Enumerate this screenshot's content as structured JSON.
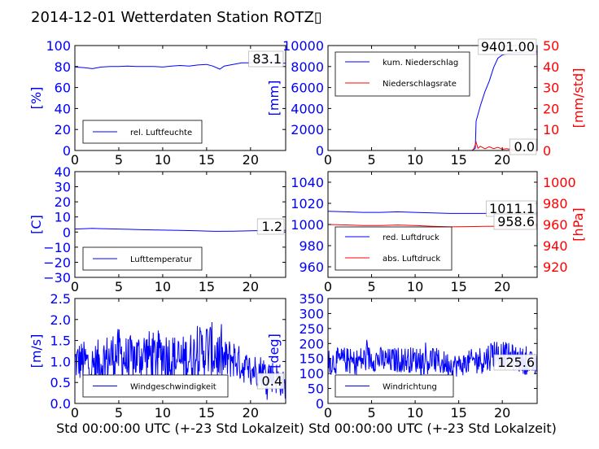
{
  "title": "2014-12-01 Wetterdaten Station ROTZ▯",
  "colors": {
    "blue": "#0000ff",
    "red": "#ff0000",
    "axis": "#000000"
  },
  "chart_data": [
    {
      "type": "line",
      "ylabel": "[%]",
      "xlabel": "",
      "xlim": [
        0,
        24
      ],
      "ylim": [
        0,
        100
      ],
      "xticks": [
        "0",
        "5",
        "10",
        "15",
        "20"
      ],
      "yticks": [
        "0",
        "20",
        "40",
        "60",
        "80",
        "100"
      ],
      "legend": [
        "rel. Luftfeuchte"
      ],
      "legend_loc": "lower-left",
      "annotations": [
        "83.1"
      ],
      "series": [
        {
          "name": "rel. Luftfeuchte",
          "color": "#0000ff",
          "x": [
            0,
            1,
            2,
            3,
            4,
            5,
            6,
            7,
            8,
            9,
            10,
            11,
            12,
            13,
            14,
            15,
            15.7,
            16.5,
            17,
            18,
            19,
            20,
            21,
            22,
            23,
            24
          ],
          "y": [
            79.5,
            79.0,
            78.0,
            79.5,
            80.0,
            80.0,
            80.5,
            80.0,
            80.0,
            80.0,
            79.5,
            80.5,
            81.0,
            80.5,
            81.5,
            82.0,
            80.5,
            77.5,
            80.5,
            82.0,
            83.5,
            83.5,
            84.5,
            84.0,
            83.5,
            83.1
          ]
        }
      ]
    },
    {
      "type": "line",
      "ylabel": "[mm]",
      "ylabel_right": "[mm/std]",
      "xlabel": "",
      "xlim": [
        0,
        24
      ],
      "ylim": [
        0,
        10000
      ],
      "ylim_right": [
        0,
        50
      ],
      "xticks": [
        "0",
        "5",
        "10",
        "15",
        "20"
      ],
      "yticks": [
        "0",
        "2000",
        "4000",
        "6000",
        "8000",
        "10000"
      ],
      "yticks_right": [
        "0",
        "10",
        "20",
        "30",
        "40",
        "50"
      ],
      "legend": [
        "kum. Niederschlag",
        "Niederschlagsrate"
      ],
      "legend_loc": "upper-left",
      "annotations": [
        "9401.00",
        "0.0"
      ],
      "series": [
        {
          "name": "kum. Niederschlag",
          "color": "#0000ff",
          "axis": "left",
          "x": [
            0,
            16.5,
            16.9,
            17.0,
            17.5,
            18.0,
            18.5,
            19.0,
            19.5,
            20.0,
            21.0,
            22.0,
            23.0,
            24.0
          ],
          "y": [
            0,
            0,
            200,
            2800,
            4300,
            5600,
            6600,
            7900,
            8800,
            9100,
            9300,
            9350,
            9390,
            9401
          ]
        },
        {
          "name": "Niederschlagsrate",
          "color": "#ff0000",
          "axis": "right",
          "x": [
            0,
            16.6,
            16.8,
            17.0,
            17.2,
            17.5,
            18.0,
            18.5,
            19.0,
            19.5,
            20.0,
            20.5,
            21.0,
            21.5,
            22.0,
            24.0
          ],
          "y": [
            0,
            0,
            1.5,
            4,
            1.0,
            2.0,
            0.8,
            1.8,
            0.9,
            1.5,
            0.6,
            0.9,
            0.5,
            0.8,
            0.0,
            0.0
          ]
        }
      ]
    },
    {
      "type": "line",
      "ylabel": "[C]",
      "xlabel": "",
      "xlim": [
        0,
        24
      ],
      "ylim": [
        -30,
        40
      ],
      "xticks": [
        "0",
        "5",
        "10",
        "15",
        "20"
      ],
      "yticks": [
        "−30",
        "−20",
        "−10",
        "0",
        "10",
        "20",
        "30",
        "40"
      ],
      "legend": [
        "Lufttemperatur"
      ],
      "legend_loc": "lower-left",
      "annotations": [
        "1.2"
      ],
      "series": [
        {
          "name": "Lufttemperatur",
          "color": "#0000ff",
          "x": [
            0,
            2,
            4,
            6,
            8,
            10,
            12,
            14,
            16,
            18,
            20,
            22,
            24
          ],
          "y": [
            2.0,
            2.4,
            2.1,
            1.8,
            1.5,
            1.3,
            1.1,
            0.8,
            0.5,
            0.6,
            0.8,
            1.0,
            1.2
          ]
        }
      ]
    },
    {
      "type": "line",
      "ylabel": "",
      "ylabel_right": "[hPa]",
      "xlabel": "",
      "xlim": [
        0,
        24
      ],
      "ylim": [
        950,
        1050
      ],
      "ylim_right": [
        910,
        1010
      ],
      "xticks": [
        "0",
        "5",
        "10",
        "15",
        "20"
      ],
      "yticks": [
        "960",
        "980",
        "1000",
        "1020",
        "1040"
      ],
      "yticks_right": [
        "920",
        "940",
        "960",
        "980",
        "1000"
      ],
      "legend": [
        "red. Luftdruck",
        "abs. Luftdruck"
      ],
      "legend_loc": "lower-left",
      "annotations": [
        "1011.1",
        "958.6"
      ],
      "series": [
        {
          "name": "red. Luftdruck",
          "color": "#0000ff",
          "axis": "left",
          "x": [
            0,
            2,
            4,
            6,
            8,
            10,
            12,
            14,
            16,
            18,
            20,
            22,
            24
          ],
          "y": [
            1012.5,
            1012.0,
            1011.5,
            1011.5,
            1012.0,
            1011.5,
            1011.0,
            1010.5,
            1010.5,
            1010.5,
            1011.0,
            1011.0,
            1011.1
          ]
        },
        {
          "name": "abs. Luftdruck",
          "color": "#ff0000",
          "axis": "right",
          "x": [
            0,
            2,
            4,
            6,
            8,
            10,
            12,
            14,
            16,
            18,
            20,
            22,
            24
          ],
          "y": [
            960.0,
            959.6,
            959.0,
            959.0,
            959.5,
            959.0,
            958.3,
            957.8,
            958.0,
            958.2,
            958.4,
            958.5,
            958.6
          ]
        }
      ]
    },
    {
      "type": "line",
      "ylabel": "[m/s]",
      "xlabel": "Std 00:00:00 UTC (+-23 Std Lokalzeit)",
      "xlim": [
        0,
        24
      ],
      "ylim": [
        0,
        2.5
      ],
      "xticks": [
        "0",
        "5",
        "10",
        "15",
        "20"
      ],
      "yticks": [
        "0.0",
        "0.5",
        "1.0",
        "1.5",
        "2.0",
        "2.5"
      ],
      "legend": [
        "Windgeschwindigkeit"
      ],
      "legend_loc": "lower-center",
      "annotations": [
        "0.4"
      ],
      "series": [
        {
          "name": "Windgeschwindigkeit",
          "color": "#0000ff",
          "x": [
            0,
            1,
            2,
            3,
            4,
            5,
            6,
            7,
            8,
            9,
            10,
            11,
            12,
            13,
            14,
            15,
            16,
            17,
            18,
            19,
            20,
            21,
            22,
            23,
            24
          ],
          "y": [
            1.0,
            1.0,
            0.9,
            1.0,
            1.1,
            1.2,
            1.0,
            1.1,
            1.2,
            1.1,
            1.2,
            1.1,
            1.0,
            1.1,
            1.2,
            1.3,
            1.2,
            1.0,
            1.1,
            0.9,
            0.8,
            0.8,
            0.7,
            0.6,
            0.4
          ],
          "spread": [
            0.5,
            0.5,
            0.5,
            0.6,
            0.6,
            0.6,
            0.6,
            0.6,
            0.6,
            0.6,
            0.6,
            0.6,
            0.6,
            0.6,
            0.6,
            0.7,
            0.7,
            0.5,
            0.5,
            0.4,
            0.4,
            0.4,
            0.4,
            0.4,
            0.3
          ]
        }
      ]
    },
    {
      "type": "line",
      "ylabel": "[deg]",
      "xlabel": "Std 00:00:00 UTC (+-23 Std Lokalzeit)",
      "xlim": [
        0,
        24
      ],
      "ylim": [
        0,
        360
      ],
      "xticks": [
        "0",
        "5",
        "10",
        "15",
        "20"
      ],
      "yticks": [
        "0",
        "50",
        "100",
        "150",
        "200",
        "250",
        "300",
        "350"
      ],
      "legend": [
        "Windrichtung"
      ],
      "legend_loc": "lower-left",
      "annotations": [
        "125.6"
      ],
      "series": [
        {
          "name": "Windrichtung",
          "color": "#0000ff",
          "x": [
            0,
            1,
            2,
            3,
            4,
            5,
            6,
            7,
            8,
            9,
            10,
            11,
            12,
            13,
            14,
            15,
            16,
            17,
            18,
            19,
            20,
            21,
            22,
            23,
            24
          ],
          "y": [
            140,
            145,
            150,
            140,
            150,
            155,
            150,
            145,
            150,
            150,
            150,
            145,
            150,
            140,
            135,
            130,
            140,
            150,
            150,
            175,
            165,
            160,
            150,
            140,
            125.6
          ],
          "spread": [
            45,
            45,
            45,
            45,
            50,
            45,
            45,
            45,
            45,
            45,
            45,
            45,
            45,
            45,
            40,
            40,
            40,
            45,
            50,
            55,
            50,
            45,
            45,
            45,
            40
          ]
        }
      ]
    }
  ]
}
